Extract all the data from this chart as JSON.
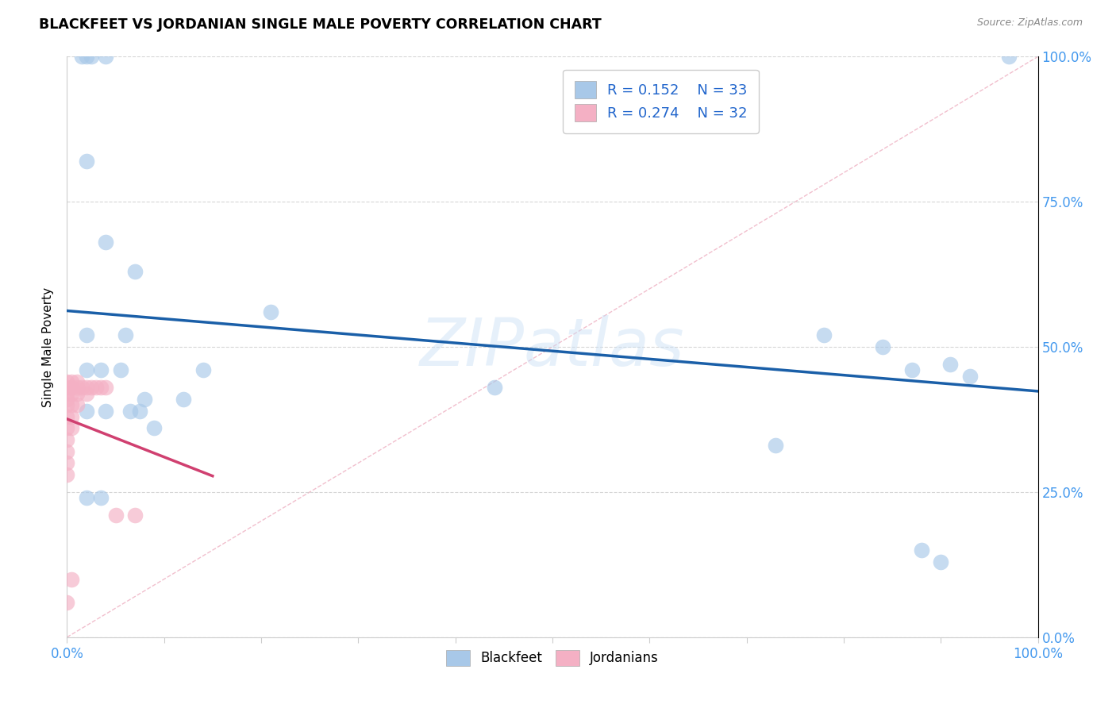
{
  "title": "BLACKFEET VS JORDANIAN SINGLE MALE POVERTY CORRELATION CHART",
  "source": "Source: ZipAtlas.com",
  "ylabel": "Single Male Poverty",
  "watermark": "ZIPatlas",
  "legend_r_blue": "R = 0.152",
  "legend_n_blue": "N = 33",
  "legend_r_pink": "R = 0.274",
  "legend_n_pink": "N = 32",
  "blue_color": "#a8c8e8",
  "pink_color": "#f4b0c4",
  "blue_line_color": "#1a5fa8",
  "pink_line_color": "#d04070",
  "diag_line_color": "#cccccc",
  "ytick_color": "#4499ee",
  "xtick_color": "#4499ee",
  "blue_scatter": [
    [
      0.015,
      1.0
    ],
    [
      0.02,
      1.0
    ],
    [
      0.025,
      1.0
    ],
    [
      0.04,
      1.0
    ],
    [
      0.97,
      1.0
    ],
    [
      0.02,
      0.82
    ],
    [
      0.04,
      0.68
    ],
    [
      0.07,
      0.63
    ],
    [
      0.14,
      0.46
    ],
    [
      0.21,
      0.56
    ],
    [
      0.02,
      0.52
    ],
    [
      0.06,
      0.52
    ],
    [
      0.02,
      0.46
    ],
    [
      0.035,
      0.46
    ],
    [
      0.055,
      0.46
    ],
    [
      0.44,
      0.43
    ],
    [
      0.08,
      0.41
    ],
    [
      0.12,
      0.41
    ],
    [
      0.02,
      0.39
    ],
    [
      0.04,
      0.39
    ],
    [
      0.065,
      0.39
    ],
    [
      0.075,
      0.39
    ],
    [
      0.09,
      0.36
    ],
    [
      0.73,
      0.33
    ],
    [
      0.02,
      0.24
    ],
    [
      0.035,
      0.24
    ],
    [
      0.78,
      0.52
    ],
    [
      0.84,
      0.5
    ],
    [
      0.87,
      0.46
    ],
    [
      0.91,
      0.47
    ],
    [
      0.93,
      0.45
    ],
    [
      0.88,
      0.15
    ],
    [
      0.9,
      0.13
    ]
  ],
  "pink_scatter": [
    [
      0.0,
      0.44
    ],
    [
      0.0,
      0.43
    ],
    [
      0.0,
      0.42
    ],
    [
      0.0,
      0.41
    ],
    [
      0.0,
      0.4
    ],
    [
      0.0,
      0.38
    ],
    [
      0.0,
      0.36
    ],
    [
      0.0,
      0.34
    ],
    [
      0.0,
      0.32
    ],
    [
      0.0,
      0.3
    ],
    [
      0.0,
      0.28
    ],
    [
      0.005,
      0.44
    ],
    [
      0.005,
      0.43
    ],
    [
      0.005,
      0.42
    ],
    [
      0.005,
      0.4
    ],
    [
      0.005,
      0.38
    ],
    [
      0.005,
      0.36
    ],
    [
      0.01,
      0.44
    ],
    [
      0.01,
      0.43
    ],
    [
      0.01,
      0.42
    ],
    [
      0.01,
      0.4
    ],
    [
      0.015,
      0.43
    ],
    [
      0.02,
      0.43
    ],
    [
      0.02,
      0.42
    ],
    [
      0.025,
      0.43
    ],
    [
      0.03,
      0.43
    ],
    [
      0.035,
      0.43
    ],
    [
      0.04,
      0.43
    ],
    [
      0.005,
      0.1
    ],
    [
      0.05,
      0.21
    ],
    [
      0.07,
      0.21
    ],
    [
      0.0,
      0.06
    ]
  ],
  "xlim": [
    0,
    1
  ],
  "ylim": [
    0,
    1
  ],
  "figsize": [
    14.06,
    8.92
  ],
  "dpi": 100
}
